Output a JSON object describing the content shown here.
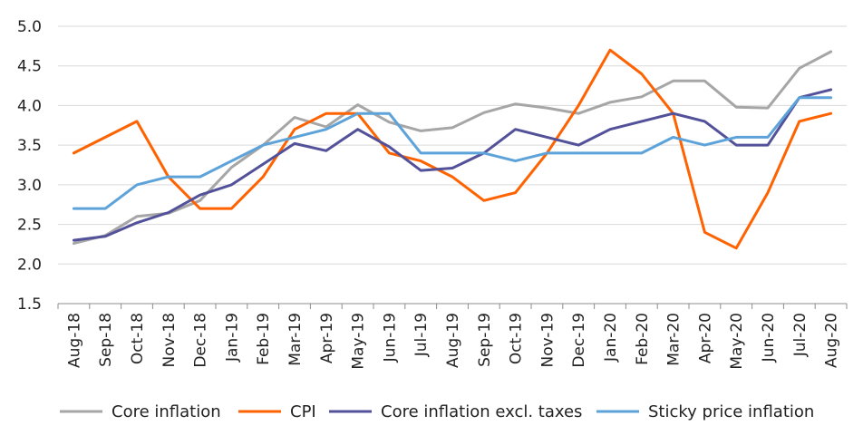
{
  "chart_data": {
    "type": "line",
    "title": "",
    "xlabel": "",
    "ylabel": "",
    "ylim": [
      1.5,
      5.0
    ],
    "yticks": [
      "1.5",
      "2.0",
      "2.5",
      "3.0",
      "3.5",
      "4.0",
      "4.5",
      "5.0"
    ],
    "grid": "horizontal",
    "legend_position": "bottom",
    "categories": [
      "Aug-18",
      "Sep-18",
      "Oct-18",
      "Nov-18",
      "Dec-18",
      "Jan-19",
      "Feb-19",
      "Mar-19",
      "Apr-19",
      "May-19",
      "Jun-19",
      "Jul-19",
      "Aug-19",
      "Sep-19",
      "Oct-19",
      "Nov-19",
      "Dec-19",
      "Jan-20",
      "Feb-20",
      "Mar-20",
      "Apr-20",
      "May-20",
      "Jun-20",
      "Jul-20",
      "Aug-20"
    ],
    "series": [
      {
        "name": "Core inflation",
        "color": "#A6A6A6",
        "values": [
          2.26,
          2.36,
          2.6,
          2.64,
          2.8,
          3.22,
          3.5,
          3.85,
          3.73,
          4.01,
          3.79,
          3.68,
          3.72,
          3.91,
          4.02,
          3.97,
          3.9,
          4.04,
          4.11,
          4.31,
          4.31,
          3.98,
          3.97,
          4.47,
          4.68
        ]
      },
      {
        "name": "CPI",
        "color": "#FF6200",
        "values": [
          3.4,
          3.6,
          3.8,
          3.1,
          2.7,
          2.7,
          3.1,
          3.7,
          3.9,
          3.9,
          3.4,
          3.3,
          3.1,
          2.8,
          2.9,
          3.4,
          4.0,
          4.7,
          4.4,
          3.9,
          2.4,
          2.2,
          2.9,
          3.8,
          3.9
        ]
      },
      {
        "name": "Core inflation excl. taxes",
        "color": "#525199",
        "values": [
          2.3,
          2.35,
          2.52,
          2.65,
          2.87,
          3.0,
          3.26,
          3.52,
          3.43,
          3.7,
          3.48,
          3.18,
          3.21,
          3.4,
          3.7,
          3.6,
          3.5,
          3.7,
          3.8,
          3.9,
          3.8,
          3.5,
          3.5,
          4.1,
          4.2
        ]
      },
      {
        "name": "Sticky price inflation",
        "color": "#5DA3DA",
        "values": [
          2.7,
          2.7,
          3.0,
          3.1,
          3.1,
          3.3,
          3.5,
          3.6,
          3.7,
          3.9,
          3.9,
          3.4,
          3.4,
          3.4,
          3.3,
          3.4,
          3.4,
          3.4,
          3.4,
          3.6,
          3.5,
          3.6,
          3.6,
          4.1,
          4.1
        ]
      }
    ]
  }
}
